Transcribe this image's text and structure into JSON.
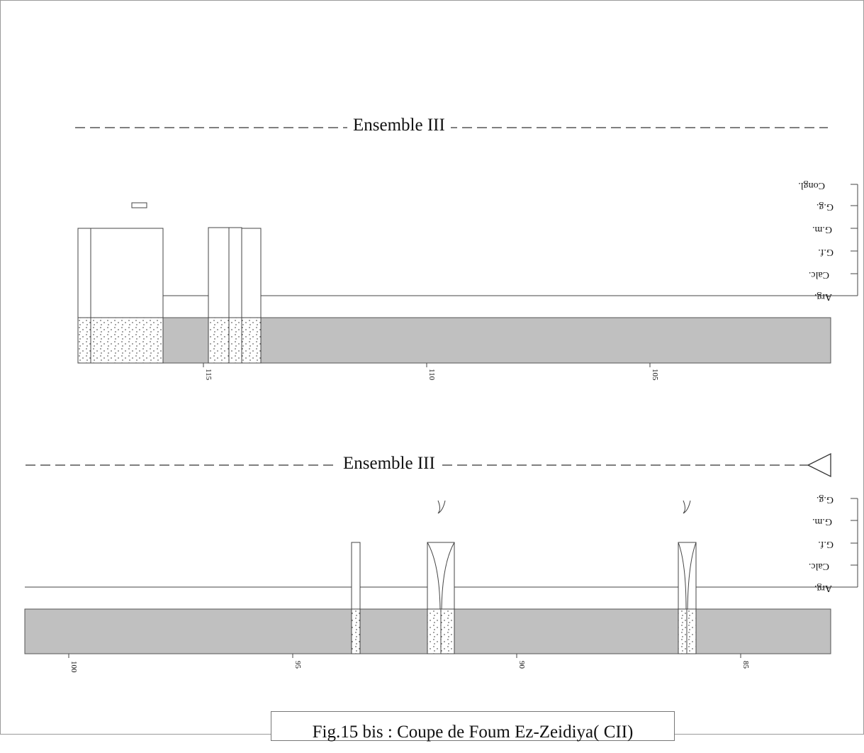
{
  "top_section": {
    "title": "Ensemble III",
    "grain_labels": [
      "Congl.",
      "G.g.",
      "G.m.",
      "G.f.",
      "Calc.",
      "Arg."
    ],
    "ticks": [
      "115",
      "110",
      "105"
    ]
  },
  "bottom_section": {
    "title": "Ensemble III",
    "grain_labels": [
      "G.g.",
      "G.m.",
      "G.f.",
      "Calc.",
      "Arg."
    ],
    "ticks": [
      "100",
      "95",
      "90",
      "85"
    ]
  },
  "caption": "Fig.15 bis : Coupe de Foum Ez-Zeidiya( CII)",
  "colors": {
    "band": "#c0c0c0",
    "line": "#333333",
    "dash": "#333333"
  }
}
